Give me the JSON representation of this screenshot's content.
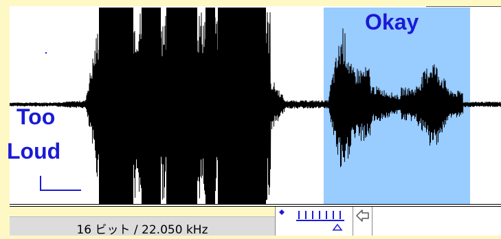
{
  "annotations": {
    "okay_label": "Okay",
    "too_label": "Too",
    "loud_label": "Loud"
  },
  "status_bar": {
    "format_text": "16 ビット / 22.050 kHz"
  },
  "icons": {
    "zoom": "zoom-slider-icon",
    "scroll_left": "arrow-left-icon"
  },
  "colors": {
    "background": "#fef9c4",
    "waveform": "#000000",
    "selection": "#99ccff",
    "annotation": "#1a1ad6",
    "status_field": "#dcdcdc"
  }
}
